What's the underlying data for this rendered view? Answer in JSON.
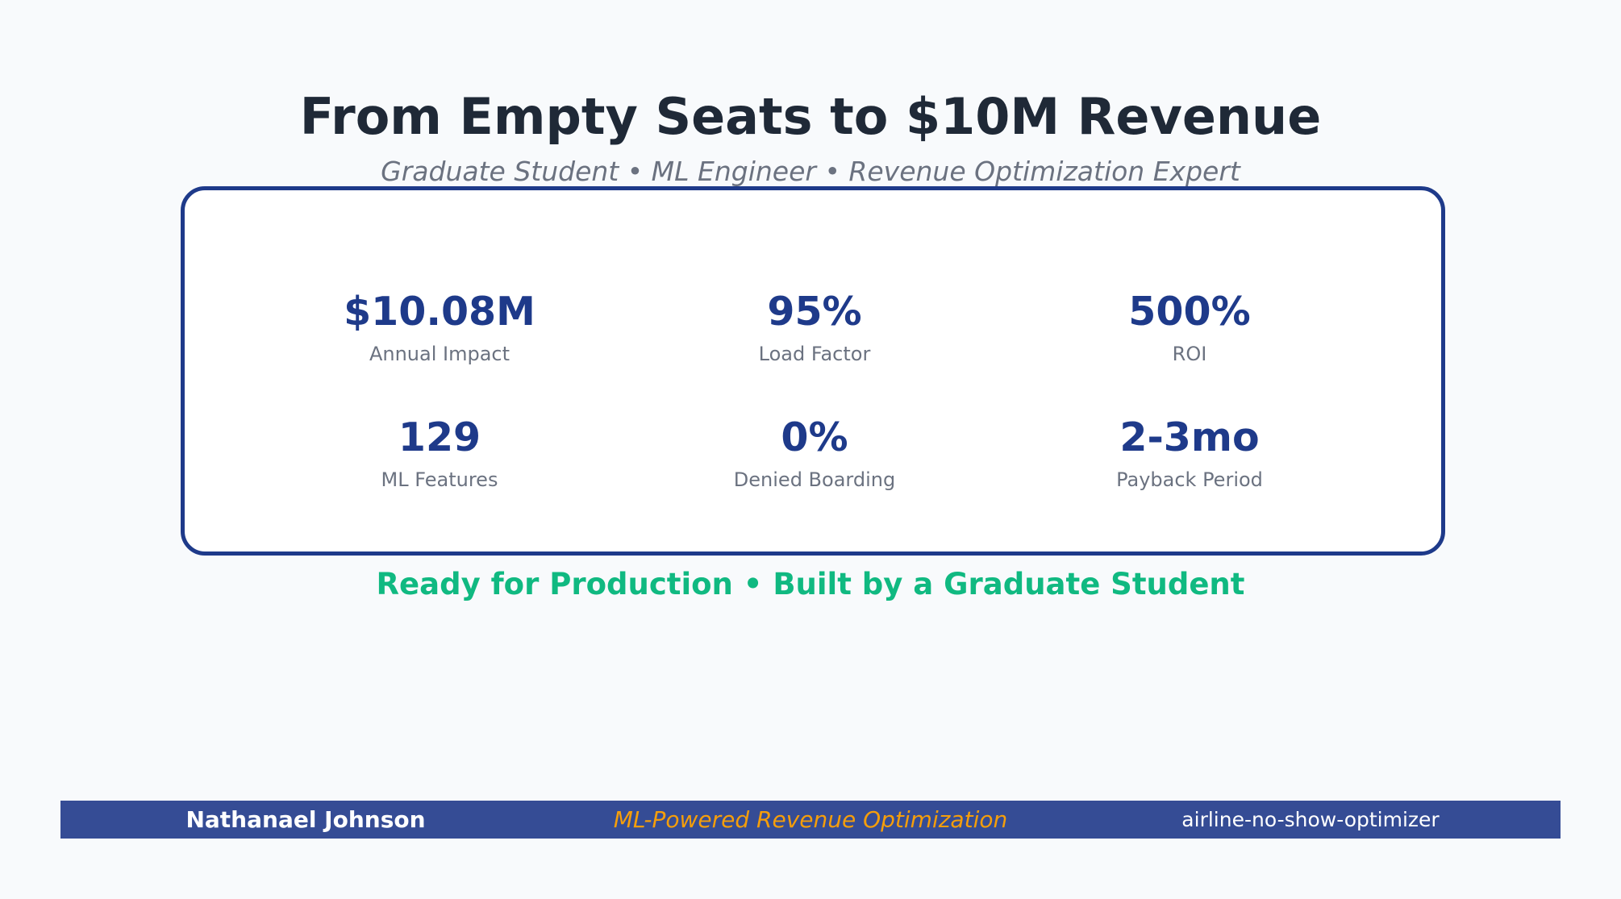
{
  "header": {
    "title": "From Empty Seats to $10M Revenue",
    "subtitle": "Graduate Student • ML Engineer • Revenue Optimization Expert"
  },
  "metrics": [
    {
      "value": "$10.08M",
      "label": "Annual Impact"
    },
    {
      "value": "95%",
      "label": "Load Factor"
    },
    {
      "value": "500%",
      "label": "ROI"
    },
    {
      "value": "129",
      "label": "ML Features"
    },
    {
      "value": "0%",
      "label": "Denied Boarding"
    },
    {
      "value": "2-3mo",
      "label": "Payback Period"
    }
  ],
  "tagline": "Ready for Production • Built by a Graduate Student",
  "footer": {
    "name": "Nathanael Johnson",
    "center": "ML-Powered Revenue Optimization",
    "repo": "airline-no-show-optimizer"
  },
  "colors": {
    "accent": "#1e3a8a",
    "success": "#10b981",
    "footer_bg": "#354c95",
    "highlight": "#f59e0b"
  }
}
